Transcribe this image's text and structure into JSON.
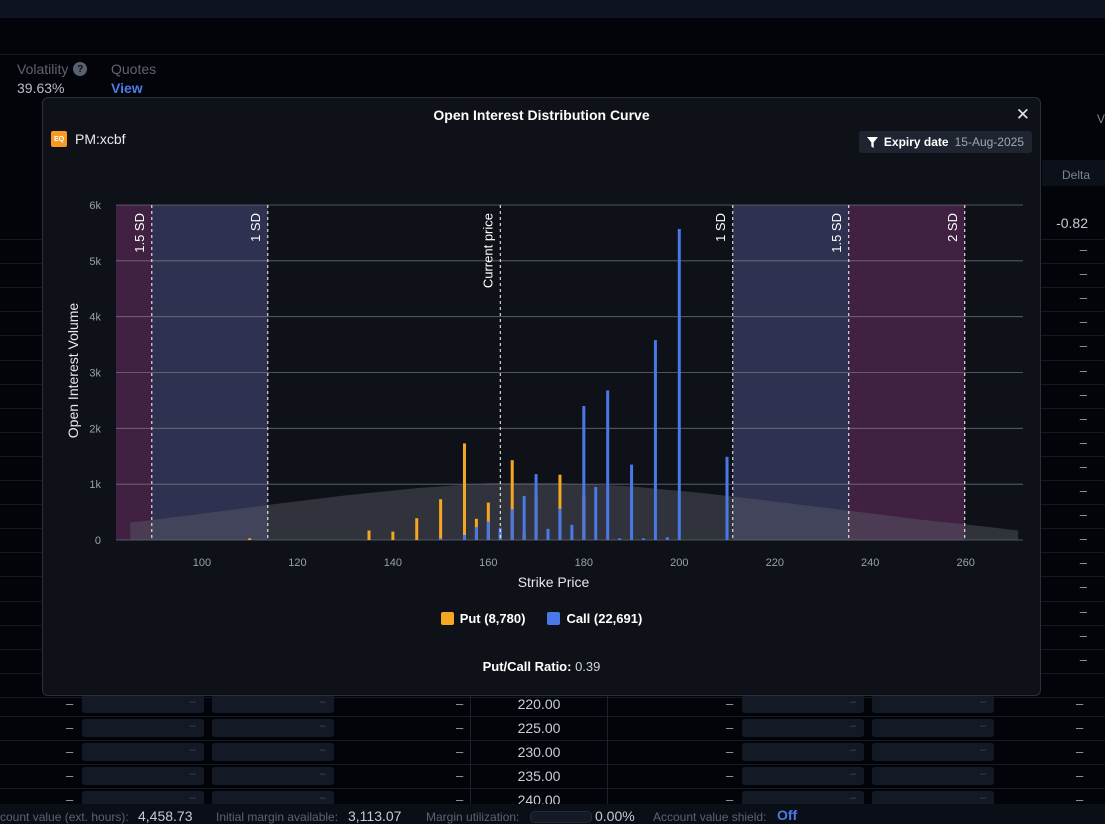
{
  "background": {
    "stats": [
      {
        "label": "Volatility",
        "value": "39.63%"
      },
      {
        "label": "Quotes",
        "link": "View"
      }
    ],
    "delta_header": "Delta",
    "delta_first_value": "-0.82",
    "right_edge_letter": "V",
    "dash": "–",
    "chain_rows": [
      {
        "strike": "220.00"
      },
      {
        "strike": "225.00"
      },
      {
        "strike": "230.00"
      },
      {
        "strike": "235.00"
      },
      {
        "strike": "240.00"
      }
    ],
    "footer": {
      "account_value_label": "count value (ext. hours):",
      "account_value": "4,458.73",
      "initial_margin_label": "Initial margin available:",
      "initial_margin": "3,113.07",
      "margin_util_label": "Margin utilization:",
      "margin_util": "0.00%",
      "shield_label": "Account value shield:",
      "shield_value": "Off"
    }
  },
  "modal": {
    "title": "Open Interest Distribution Curve",
    "close_icon": "close-icon",
    "symbol": "PM:xcbf",
    "symbol_logo_text": "EQ",
    "expiry_label": "Expiry date",
    "expiry_value": "15-Aug-2025",
    "legend": {
      "put": "Put (8,780)",
      "call": "Call (22,691)"
    },
    "ratio_label": "Put/Call Ratio:",
    "ratio_value": "0.39"
  },
  "chart_data": {
    "type": "bar",
    "xlabel": "Strike Price",
    "ylabel": "Open Interest Volume",
    "xlim": [
      82,
      272
    ],
    "ylim": [
      0,
      6000
    ],
    "x_ticks": [
      100,
      120,
      140,
      160,
      180,
      200,
      220,
      240,
      260
    ],
    "y_ticks": [
      0,
      1000,
      2000,
      3000,
      4000,
      5000,
      6000
    ],
    "y_tick_labels": [
      "0",
      "1k",
      "2k",
      "3k",
      "4k",
      "5k",
      "6k"
    ],
    "grid": "horizontal",
    "colors": {
      "put": "#f5a623",
      "call": "#4a78e8",
      "put_legend": "#f5a623",
      "call_legend": "#4a78e8"
    },
    "series": [
      {
        "name": "Put",
        "x": [
          110,
          135,
          140,
          145,
          150,
          155,
          157.5,
          160,
          162.5,
          165,
          167.5,
          170,
          172.5,
          175,
          177.5,
          180
        ],
        "values": [
          30,
          170,
          150,
          390,
          730,
          1730,
          380,
          670,
          130,
          1430,
          130,
          830,
          80,
          1170,
          40,
          800
        ]
      },
      {
        "name": "Call",
        "x": [
          150,
          155,
          157.5,
          160,
          162.5,
          165,
          167.5,
          170,
          172.5,
          175,
          177.5,
          180,
          182.5,
          185,
          187.5,
          190,
          192.5,
          195,
          197.5,
          200,
          210
        ],
        "values": [
          30,
          90,
          230,
          330,
          220,
          550,
          790,
          1180,
          200,
          560,
          270,
          2400,
          950,
          2680,
          30,
          1350,
          30,
          3580,
          50,
          5570,
          1490
        ]
      }
    ],
    "distribution_curve": {
      "x": [
        85,
        100,
        115,
        130,
        145,
        160,
        175,
        190,
        205,
        220,
        235,
        250,
        265,
        271
      ],
      "values": [
        310,
        470,
        640,
        800,
        930,
        1020,
        1020,
        960,
        840,
        690,
        530,
        370,
        230,
        170
      ]
    },
    "reference_lines": [
      {
        "label": "1.5 SD",
        "x": 89.5
      },
      {
        "label": "1 SD",
        "x": 113.8
      },
      {
        "label": "Current price",
        "x": 162.5
      },
      {
        "label": "1 SD",
        "x": 211.2
      },
      {
        "label": "1.5 SD",
        "x": 235.5
      },
      {
        "label": "2 SD",
        "x": 259.8
      }
    ],
    "bands": [
      {
        "from": 82,
        "to": 89.5,
        "color": "#6b2f66"
      },
      {
        "from": 89.5,
        "to": 113.8,
        "color": "#4a4c82"
      },
      {
        "from": 211.2,
        "to": 235.5,
        "color": "#4a4c82"
      },
      {
        "from": 235.5,
        "to": 259.8,
        "color": "#6b2f66"
      }
    ]
  }
}
